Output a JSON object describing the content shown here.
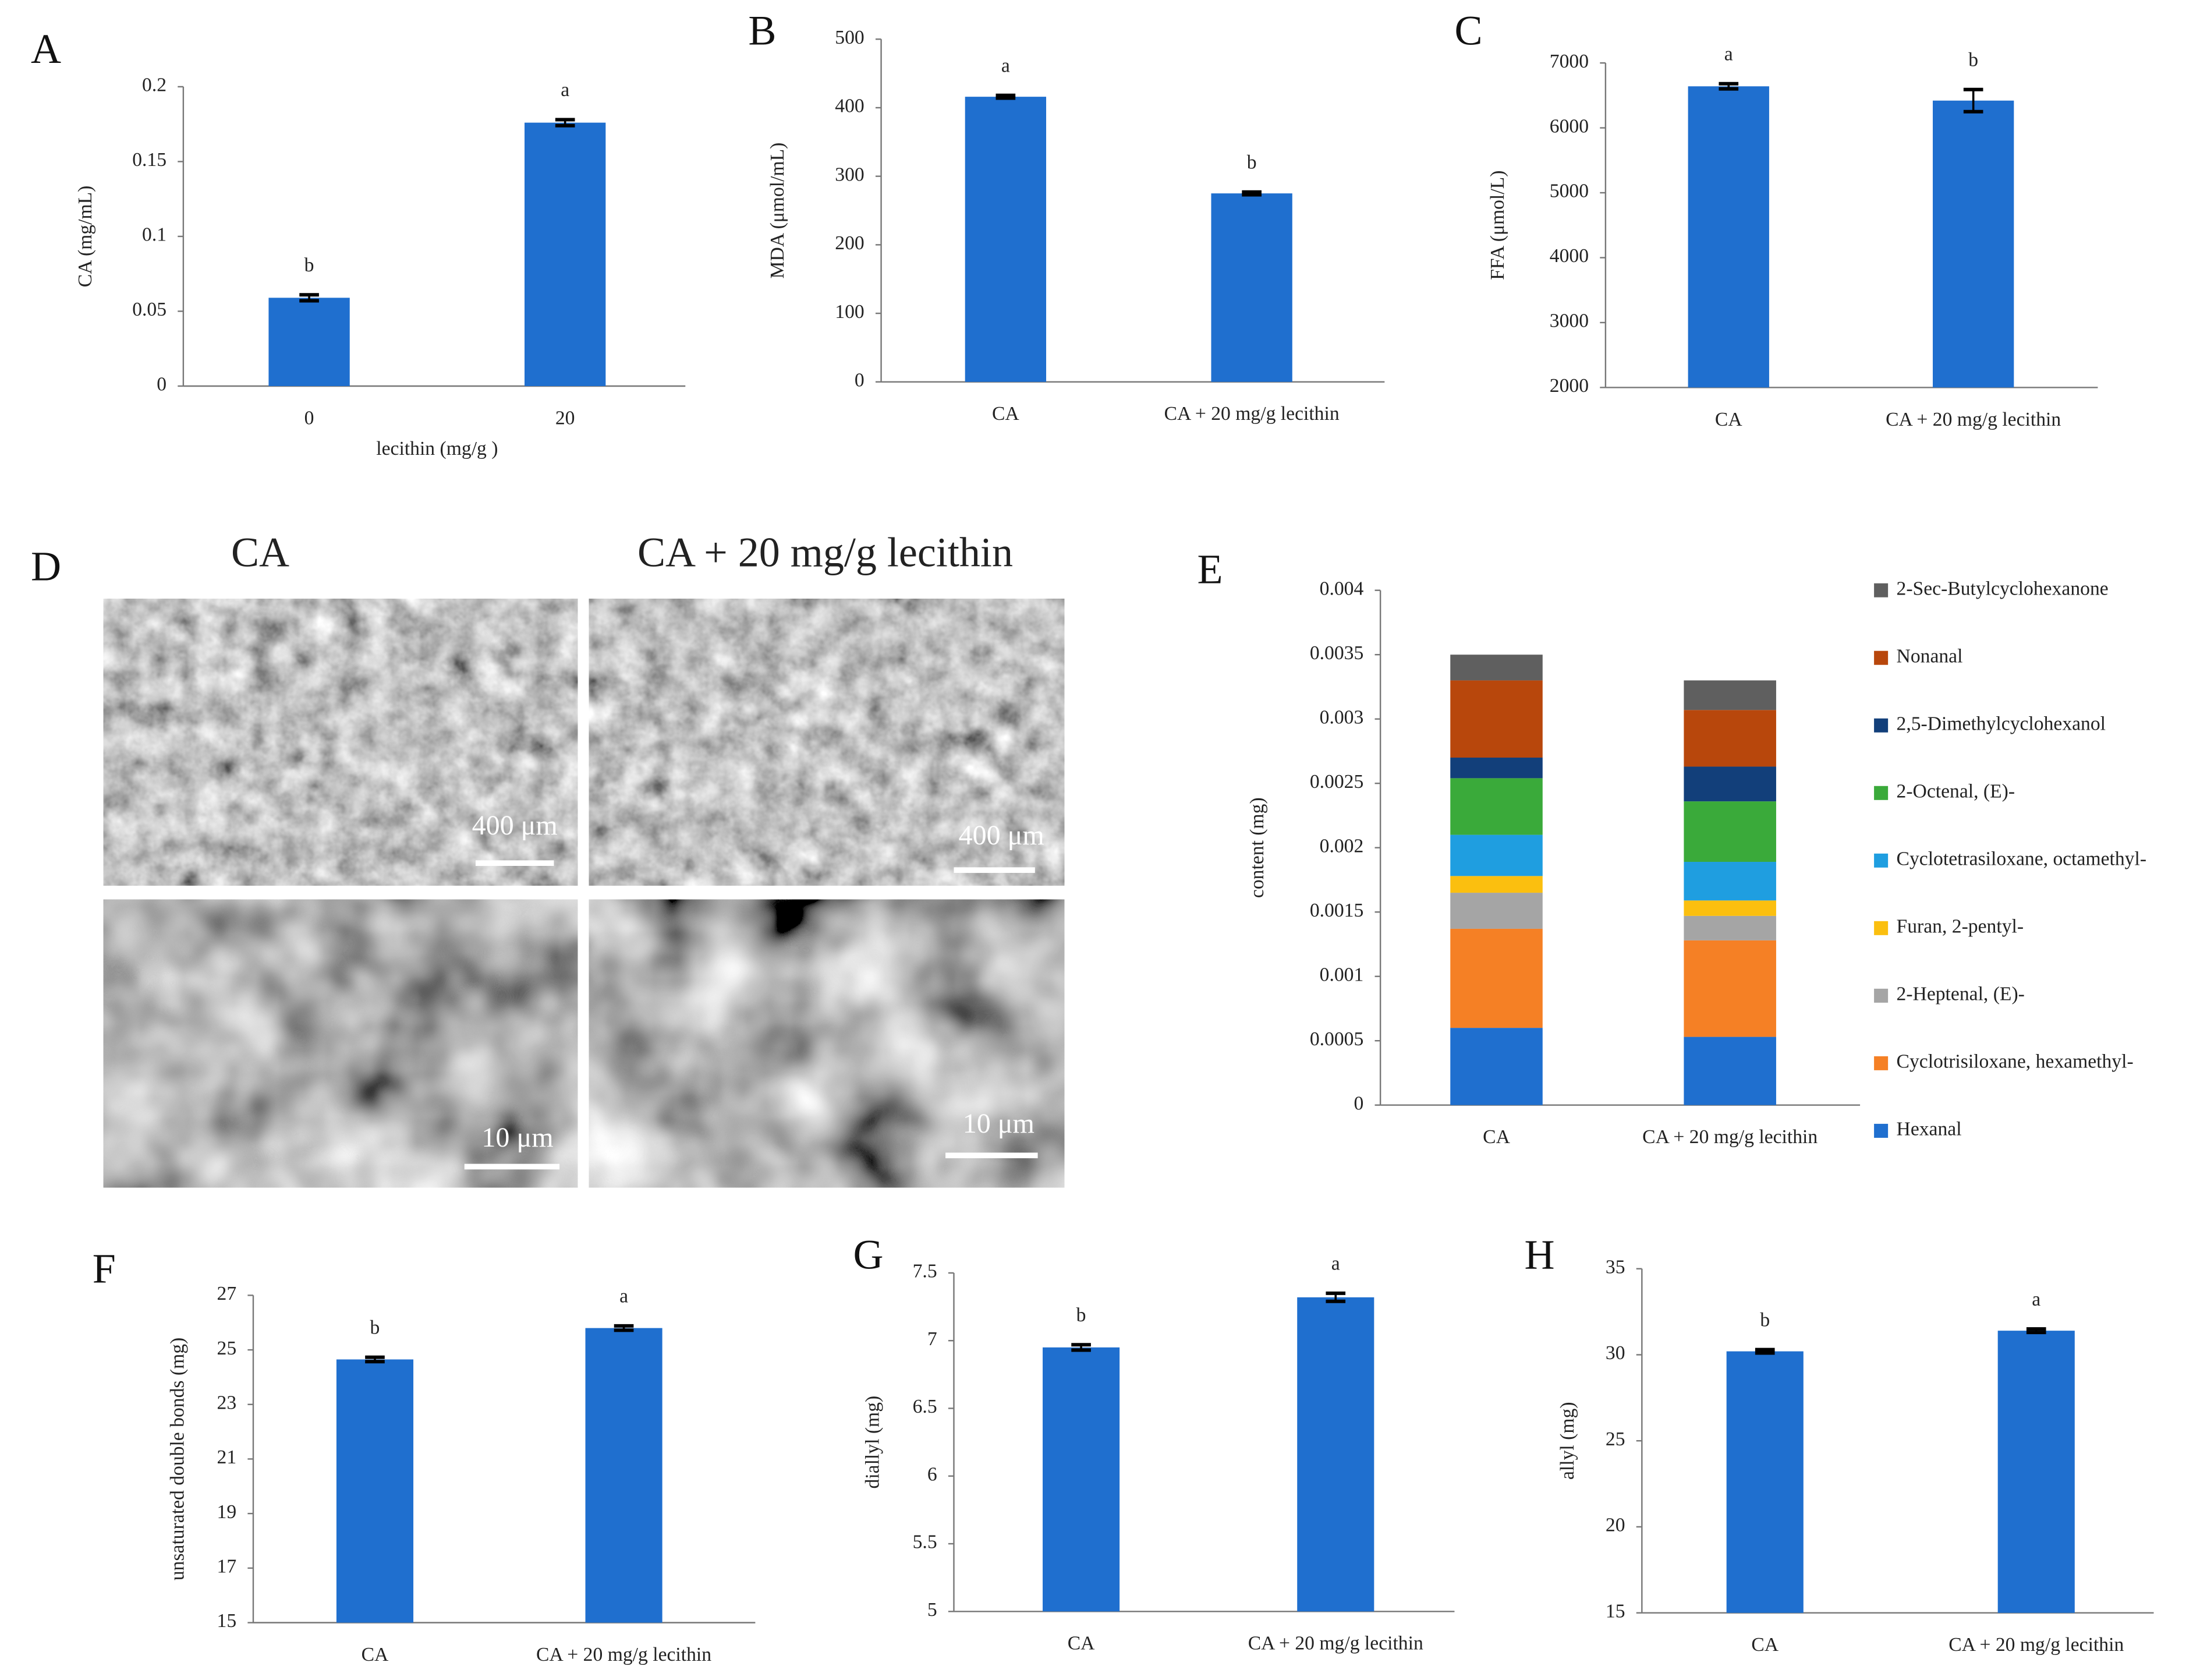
{
  "chart_data": [
    {
      "type": "bar",
      "panel_label": "A",
      "ylabel": "CA (mg/mL)",
      "xlabel": "lecithin (mg/g )",
      "categories": [
        "0",
        "20"
      ],
      "values": [
        0.059,
        0.176
      ],
      "errors": [
        0.002,
        0.002
      ],
      "annotations": [
        "b",
        "a"
      ],
      "color": "#1f6fcf",
      "ylim": [
        0,
        0.2
      ],
      "yticks": [
        0,
        0.05,
        0.1,
        0.15,
        0.2
      ]
    },
    {
      "type": "bar",
      "panel_label": "B",
      "ylabel": "MDA (μmol/mL)",
      "categories": [
        "CA",
        "CA + 20 mg/g lecithin"
      ],
      "values": [
        416,
        275
      ],
      "errors": [
        2,
        2
      ],
      "annotations": [
        "a",
        "b"
      ],
      "color": "#1f6fcf",
      "ylim": [
        0,
        500
      ],
      "yticks": [
        0,
        100,
        200,
        300,
        400,
        500
      ]
    },
    {
      "type": "bar",
      "panel_label": "C",
      "ylabel": "FFA (μmol/L)",
      "categories": [
        "CA",
        "CA + 20 mg/g lecithin"
      ],
      "values": [
        6640,
        6420
      ],
      "errors": [
        40,
        170
      ],
      "annotations": [
        "a",
        "b"
      ],
      "color": "#1f6fcf",
      "ylim": [
        2000,
        7000
      ],
      "yticks": [
        2000,
        3000,
        4000,
        5000,
        6000,
        7000
      ]
    },
    {
      "type": "stacked_bar",
      "panel_label": "E",
      "ylabel": "content (mg)",
      "categories": [
        "CA",
        "CA + 20 mg/g lecithin"
      ],
      "ylim": [
        0,
        0.004
      ],
      "yticks": [
        0,
        0.0005,
        0.001,
        0.0015,
        0.002,
        0.0025,
        0.003,
        0.0035,
        0.004
      ],
      "series": [
        {
          "name": "Hexanal",
          "color": "#1f6fcf",
          "values": [
            0.0006,
            0.00053
          ]
        },
        {
          "name": "Cyclotrisiloxane, hexamethyl-",
          "color": "#f58025",
          "values": [
            0.00077,
            0.00075
          ]
        },
        {
          "name": "2-Heptenal, (E)-",
          "color": "#a5a5a5",
          "values": [
            0.00028,
            0.00019
          ]
        },
        {
          "name": "Furan, 2-pentyl-",
          "color": "#fbbf0f",
          "values": [
            0.00013,
            0.00012
          ]
        },
        {
          "name": "Cyclotetrasiloxane, octamethyl-",
          "color": "#1f9ee0",
          "values": [
            0.00032,
            0.0003
          ]
        },
        {
          "name": "2-Octenal, (E)-",
          "color": "#3aaa3a",
          "values": [
            0.00044,
            0.00047
          ]
        },
        {
          "name": "2,5-Dimethylcyclohexanol",
          "color": "#123f7a",
          "values": [
            0.00016,
            0.00027
          ]
        },
        {
          "name": "Nonanal",
          "color": "#b8470c",
          "values": [
            0.0006,
            0.00044
          ]
        },
        {
          "name": "2-Sec-Butylcyclohexanone",
          "color": "#5f5f5f",
          "values": [
            0.0002,
            0.00023
          ]
        }
      ]
    },
    {
      "type": "bar",
      "panel_label": "F",
      "ylabel": "unsaturated double bonds (mg)",
      "categories": [
        "CA",
        "CA + 20 mg/g lecithin"
      ],
      "values": [
        24.65,
        25.8
      ],
      "errors": [
        0.08,
        0.08
      ],
      "annotations": [
        "b",
        "a"
      ],
      "color": "#1f6fcf",
      "ylim": [
        15,
        27
      ],
      "yticks": [
        15,
        17,
        19,
        21,
        23,
        25,
        27
      ]
    },
    {
      "type": "bar",
      "panel_label": "G",
      "ylabel": "diallyl (mg)",
      "categories": [
        "CA",
        "CA + 20 mg/g lecithin"
      ],
      "values": [
        6.95,
        7.32
      ],
      "errors": [
        0.02,
        0.03
      ],
      "annotations": [
        "b",
        "a"
      ],
      "color": "#1f6fcf",
      "ylim": [
        5,
        7.5
      ],
      "yticks": [
        5,
        5.5,
        6,
        6.5,
        7,
        7.5
      ]
    },
    {
      "type": "bar",
      "panel_label": "H",
      "ylabel": "allyl (mg)",
      "categories": [
        "CA",
        "CA + 20 mg/g lecithin"
      ],
      "values": [
        30.2,
        31.4
      ],
      "errors": [
        0.1,
        0.1
      ],
      "annotations": [
        "b",
        "a"
      ],
      "color": "#1f6fcf",
      "ylim": [
        15,
        35
      ],
      "yticks": [
        15,
        20,
        25,
        30,
        35
      ]
    }
  ],
  "micrographs": {
    "panel_label": "D",
    "columns": [
      "CA",
      "CA + 20 mg/g lecithin"
    ],
    "scale_bars": [
      "400 μm",
      "400 μm",
      "10 μm",
      "10 μm"
    ]
  }
}
